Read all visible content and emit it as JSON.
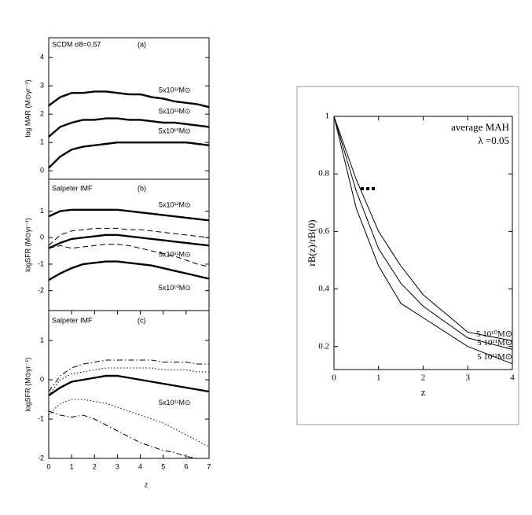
{
  "chart_data": [
    {
      "type": "line",
      "title": "SCDM σ8=0.57",
      "annotations": [
        "(a)"
      ],
      "ylabel": "log MAR (M⊙yr⁻¹)",
      "xlim": [
        0,
        7
      ],
      "ylim": [
        -0.3,
        4.7
      ],
      "yticks": [
        0,
        1,
        2,
        3,
        4
      ],
      "x": [
        0,
        0.5,
        1,
        1.5,
        2,
        2.5,
        3,
        3.5,
        4,
        4.5,
        5,
        5.5,
        6,
        6.5,
        7
      ],
      "series": [
        {
          "name": "5x10¹²M⊙",
          "color": "#000000",
          "dash": "solid",
          "width": 2.4,
          "values": [
            2.3,
            2.6,
            2.75,
            2.75,
            2.8,
            2.8,
            2.75,
            2.7,
            2.7,
            2.6,
            2.55,
            2.45,
            2.4,
            2.35,
            2.25
          ]
        },
        {
          "name": "5x10¹¹M⊙",
          "color": "#000000",
          "dash": "solid",
          "width": 2.4,
          "values": [
            1.2,
            1.55,
            1.7,
            1.8,
            1.8,
            1.85,
            1.85,
            1.8,
            1.8,
            1.75,
            1.7,
            1.7,
            1.65,
            1.6,
            1.55
          ]
        },
        {
          "name": "5x10¹⁰M⊙",
          "color": "#000000",
          "dash": "solid",
          "width": 2.4,
          "values": [
            0.1,
            0.5,
            0.75,
            0.85,
            0.9,
            0.95,
            1.0,
            1.0,
            1.0,
            1.0,
            1.0,
            1.0,
            1.0,
            0.95,
            0.9
          ]
        }
      ]
    },
    {
      "type": "line",
      "title": "Salpeter IMF",
      "annotations": [
        "(b)"
      ],
      "ylabel": "logSFR (M⊙yr⁻¹)",
      "xlim": [
        0,
        7
      ],
      "ylim": [
        -2.75,
        2.2
      ],
      "yticks": [
        1,
        0,
        -1,
        -2
      ],
      "x": [
        0,
        0.5,
        1,
        1.5,
        2,
        2.5,
        3,
        3.5,
        4,
        4.5,
        5,
        5.5,
        6,
        6.5,
        7
      ],
      "series": [
        {
          "name": "5x10¹²M⊙",
          "color": "#000000",
          "dash": "solid",
          "width": 2.4,
          "values": [
            0.8,
            1.0,
            1.05,
            1.05,
            1.05,
            1.05,
            1.05,
            1.0,
            0.95,
            0.9,
            0.85,
            0.8,
            0.75,
            0.7,
            0.65
          ]
        },
        {
          "color": "#000000",
          "dash": "dashed",
          "width": 1,
          "values": [
            -0.3,
            0.1,
            0.25,
            0.3,
            0.35,
            0.35,
            0.35,
            0.3,
            0.3,
            0.25,
            0.2,
            0.15,
            0.1,
            0.05,
            0.0
          ]
        },
        {
          "name": "5x10¹¹M⊙",
          "color": "#000000",
          "dash": "solid",
          "width": 2.4,
          "values": [
            -0.4,
            -0.2,
            -0.05,
            0.0,
            0.05,
            0.1,
            0.1,
            0.05,
            0.0,
            -0.05,
            -0.1,
            -0.15,
            -0.2,
            -0.25,
            -0.3
          ]
        },
        {
          "color": "#000000",
          "dash": "dashed",
          "width": 1,
          "values": [
            -0.4,
            -0.3,
            -0.4,
            -0.35,
            -0.3,
            -0.25,
            -0.25,
            -0.3,
            -0.4,
            -0.5,
            -0.6,
            -0.7,
            -0.85,
            -1.0,
            -1.1
          ]
        },
        {
          "name": "5x10¹⁰M⊙",
          "color": "#000000",
          "dash": "solid",
          "width": 2.4,
          "values": [
            -1.6,
            -1.35,
            -1.15,
            -1.0,
            -0.95,
            -0.9,
            -0.9,
            -0.95,
            -1.0,
            -1.05,
            -1.15,
            -1.25,
            -1.35,
            -1.45,
            -1.55
          ]
        }
      ]
    },
    {
      "type": "line",
      "title": "Salpeter IMF",
      "annotations": [
        "(c)"
      ],
      "ylabel": "logSFR (M⊙yr⁻¹)",
      "xlabel": "z",
      "xlim": [
        0,
        7
      ],
      "ylim": [
        -2,
        1.76
      ],
      "yticks": [
        1,
        0,
        -1,
        -2
      ],
      "xticks": [
        0,
        1,
        2,
        3,
        4,
        5,
        6,
        7
      ],
      "x": [
        0,
        0.5,
        1,
        1.5,
        2,
        2.5,
        3,
        3.5,
        4,
        4.5,
        5,
        5.5,
        6,
        6.5,
        7
      ],
      "series": [
        {
          "color": "#000000",
          "dash": "dashdot",
          "width": 1,
          "values": [
            -0.3,
            0.1,
            0.3,
            0.4,
            0.45,
            0.5,
            0.5,
            0.5,
            0.5,
            0.5,
            0.45,
            0.45,
            0.45,
            0.4,
            0.4
          ]
        },
        {
          "color": "#000000",
          "dash": "dotted",
          "width": 1,
          "values": [
            -0.4,
            0.0,
            0.15,
            0.2,
            0.25,
            0.3,
            0.3,
            0.3,
            0.3,
            0.3,
            0.25,
            0.25,
            0.25,
            0.2,
            0.2
          ]
        },
        {
          "name": "5x10¹¹M⊙",
          "color": "#000000",
          "dash": "solid",
          "width": 2.4,
          "values": [
            -0.4,
            -0.2,
            -0.05,
            0.0,
            0.05,
            0.1,
            0.1,
            0.05,
            0.0,
            -0.05,
            -0.1,
            -0.15,
            -0.2,
            -0.25,
            -0.3
          ]
        },
        {
          "color": "#000000",
          "dash": "dotted",
          "width": 1,
          "values": [
            -0.9,
            -0.6,
            -0.5,
            -0.5,
            -0.55,
            -0.6,
            -0.7,
            -0.8,
            -0.9,
            -1.0,
            -1.1,
            -1.25,
            -1.4,
            -1.55,
            -1.7
          ]
        },
        {
          "color": "#000000",
          "dash": "dashdot",
          "width": 1,
          "values": [
            -0.8,
            -0.9,
            -0.95,
            -0.9,
            -1.0,
            -1.15,
            -1.3,
            -1.45,
            -1.6,
            -1.7,
            -1.8,
            -1.85,
            -1.95,
            -2.0,
            -2.0
          ]
        }
      ]
    },
    {
      "type": "line",
      "annotations": [
        "average MAH",
        "λ =0.05"
      ],
      "ylabel": "rB(z)/rB(0)",
      "xlabel": "z",
      "xlim": [
        0,
        4
      ],
      "ylim": [
        0.12,
        1
      ],
      "xticks": [
        0,
        1,
        2,
        3,
        4
      ],
      "yticks": [
        0.2,
        0.4,
        0.6,
        0.8,
        1
      ],
      "x": [
        0,
        0.5,
        1,
        1.5,
        2,
        3,
        4
      ],
      "series": [
        {
          "name": "5 10¹⁰M⊙",
          "color": "#000000",
          "dash": "solid",
          "width": 1,
          "values": [
            1,
            0.78,
            0.6,
            0.48,
            0.38,
            0.25,
            0.22
          ]
        },
        {
          "name": "5 10¹¹M⊙",
          "color": "#000000",
          "dash": "solid",
          "width": 1,
          "values": [
            1,
            0.74,
            0.54,
            0.42,
            0.34,
            0.23,
            0.19
          ]
        },
        {
          "name": "5 10¹²M⊙",
          "color": "#000000",
          "dash": "solid",
          "width": 1,
          "values": [
            1,
            0.68,
            0.48,
            0.35,
            0.3,
            0.2,
            0.14
          ]
        }
      ]
    }
  ]
}
